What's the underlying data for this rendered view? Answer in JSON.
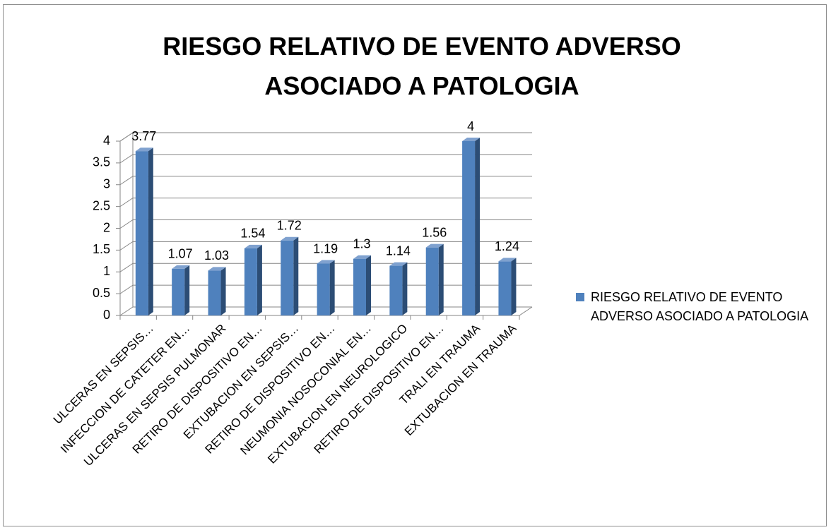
{
  "chart_data": {
    "type": "bar3d",
    "title": "RIESGO RELATIVO DE EVENTO ADVERSO ASOCIADO A PATOLOGIA",
    "categories": [
      "ULCERAS EN SEPSIS…",
      "INFECCION DE CATETER EN…",
      "ULCERAS EN SEPSIS PULMONAR",
      "RETIRO DE DISPOSITIVO EN…",
      "EXTUBACION EN SEPSIS…",
      "RETIRO DE DISPOSITIVO EN…",
      "NEUMONIA NOSOCONIAL EN…",
      "EXTUBACION EN NEUROLOGICO",
      "RETIRO DE DISPOSITIVO EN…",
      "TRALI EN TRAUMA",
      "EXTUBACION EN TRAUMA"
    ],
    "series": [
      {
        "name": "RIESGO RELATIVO DE EVENTO ADVERSO ASOCIADO A PATOLOGIA",
        "color": "#4f81bd",
        "values": [
          3.77,
          1.07,
          1.03,
          1.54,
          1.72,
          1.19,
          1.3,
          1.14,
          1.56,
          4,
          1.24
        ]
      }
    ],
    "ylim": [
      0,
      4
    ],
    "yticks": [
      0,
      0.5,
      1,
      1.5,
      2,
      2.5,
      3,
      3.5,
      4
    ],
    "grid": true,
    "legend": "right"
  }
}
